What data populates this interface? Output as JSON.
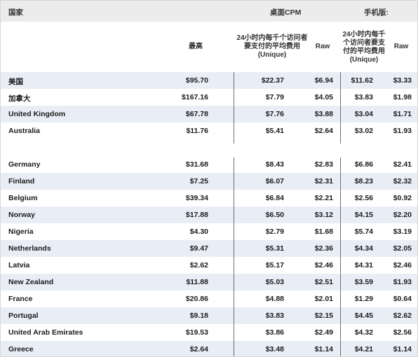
{
  "header": {
    "country": "国家",
    "desktop_cpm": "桌面CPM",
    "mobile": "手机版:"
  },
  "subheader": {
    "max": "最高",
    "desktop_unique": "24小时内每千个访问者要支付的平均费用 (Unique)",
    "desktop_raw": "Raw",
    "mobile_unique": "24小时内每千个访问者要支付的平均费用 (Unique)",
    "mobile_raw": "Raw"
  },
  "rows": [
    {
      "country": "美国",
      "max": "$95.70",
      "desktop_unique": "$22.37",
      "desktop_raw": "$6.94",
      "mobile_unique": "$11.62",
      "mobile_raw": "$3.33"
    },
    {
      "country": "加拿大",
      "max": "$167.16",
      "desktop_unique": "$7.79",
      "desktop_raw": "$4.05",
      "mobile_unique": "$3.83",
      "mobile_raw": "$1.98"
    },
    {
      "country": "United Kingdom",
      "max": "$67.78",
      "desktop_unique": "$7.76",
      "desktop_raw": "$3.88",
      "mobile_unique": "$3.04",
      "mobile_raw": "$1.71"
    },
    {
      "country": "Australia",
      "max": "$11.76",
      "desktop_unique": "$5.41",
      "desktop_raw": "$2.64",
      "mobile_unique": "$3.02",
      "mobile_raw": "$1.93"
    },
    {
      "country": "",
      "max": "",
      "desktop_unique": "",
      "desktop_raw": "",
      "mobile_unique": "",
      "mobile_raw": ""
    },
    {
      "country": "Germany",
      "max": "$31.68",
      "desktop_unique": "$8.43",
      "desktop_raw": "$2.83",
      "mobile_unique": "$6.86",
      "mobile_raw": "$2.41"
    },
    {
      "country": "Finland",
      "max": "$7.25",
      "desktop_unique": "$6.07",
      "desktop_raw": "$2.31",
      "mobile_unique": "$8.23",
      "mobile_raw": "$2.32"
    },
    {
      "country": "Belgium",
      "max": "$39.34",
      "desktop_unique": "$6.84",
      "desktop_raw": "$2.21",
      "mobile_unique": "$2.56",
      "mobile_raw": "$0.92"
    },
    {
      "country": "Norway",
      "max": "$17.88",
      "desktop_unique": "$6.50",
      "desktop_raw": "$3.12",
      "mobile_unique": "$4.15",
      "mobile_raw": "$2.20"
    },
    {
      "country": "Nigeria",
      "max": "$4.30",
      "desktop_unique": "$2.79",
      "desktop_raw": "$1.68",
      "mobile_unique": "$5.74",
      "mobile_raw": "$3.19"
    },
    {
      "country": "Netherlands",
      "max": "$9.47",
      "desktop_unique": "$5.31",
      "desktop_raw": "$2.36",
      "mobile_unique": "$4.34",
      "mobile_raw": "$2.05"
    },
    {
      "country": "Latvia",
      "max": "$2.62",
      "desktop_unique": "$5.17",
      "desktop_raw": "$2.46",
      "mobile_unique": "$4.31",
      "mobile_raw": "$2.46"
    },
    {
      "country": "New Zealand",
      "max": "$11.88",
      "desktop_unique": "$5.03",
      "desktop_raw": "$2.51",
      "mobile_unique": "$3.59",
      "mobile_raw": "$1.93"
    },
    {
      "country": "France",
      "max": "$20.86",
      "desktop_unique": "$4.88",
      "desktop_raw": "$2.01",
      "mobile_unique": "$1.29",
      "mobile_raw": "$0.64"
    },
    {
      "country": "Portugal",
      "max": "$9.18",
      "desktop_unique": "$3.83",
      "desktop_raw": "$2.15",
      "mobile_unique": "$4.45",
      "mobile_raw": "$2.62"
    },
    {
      "country": "United Arab Emirates",
      "max": "$19.53",
      "desktop_unique": "$3.86",
      "desktop_raw": "$2.49",
      "mobile_unique": "$4.32",
      "mobile_raw": "$2.56"
    },
    {
      "country": "Greece",
      "max": "$2.64",
      "desktop_unique": "$3.48",
      "desktop_raw": "$1.14",
      "mobile_unique": "$4.21",
      "mobile_raw": "$1.14"
    }
  ]
}
